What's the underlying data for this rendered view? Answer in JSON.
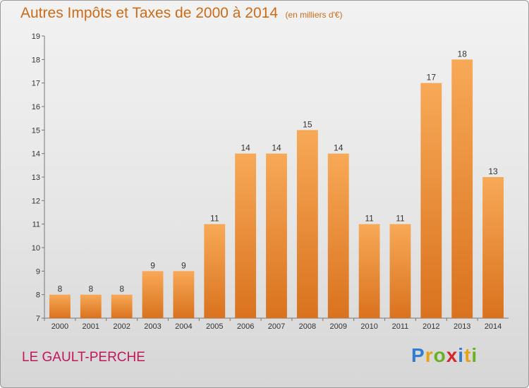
{
  "header": {
    "title": "Autres Impôts et Taxes de 2000 à 2014",
    "subtitle": "(en milliers d'€)"
  },
  "footer": {
    "commune": "LE GAULT-PERCHE",
    "brand_letters": [
      "P",
      "r",
      "o",
      "x",
      "i",
      "t",
      "i"
    ],
    "brand_colors": [
      "#2e7dd1",
      "#e8a214",
      "#6ab023",
      "#d6262b",
      "#2e7dd1",
      "#e8a214",
      "#6ab023"
    ]
  },
  "colors": {
    "title": "#cc6c1a",
    "commune": "#c2165c",
    "bar_top": "#f7a957",
    "bar_bottom": "#d9721e"
  },
  "chart_data": {
    "type": "bar",
    "title": "Autres Impôts et Taxes de 2000 à 2014",
    "subtitle": "(en milliers d'€)",
    "categories": [
      "2000",
      "2001",
      "2002",
      "2003",
      "2004",
      "2005",
      "2006",
      "2007",
      "2008",
      "2009",
      "2010",
      "2011",
      "2012",
      "2013",
      "2014"
    ],
    "values": [
      8,
      8,
      8,
      9,
      9,
      11,
      14,
      14,
      15,
      14,
      11,
      11,
      17,
      18,
      13
    ],
    "xlabel": "",
    "ylabel": "",
    "ylim": [
      7,
      19
    ],
    "yticks": [
      7,
      8,
      9,
      10,
      11,
      12,
      13,
      14,
      15,
      16,
      17,
      18,
      19
    ],
    "grid": false,
    "legend": "none",
    "data_labels": true
  }
}
